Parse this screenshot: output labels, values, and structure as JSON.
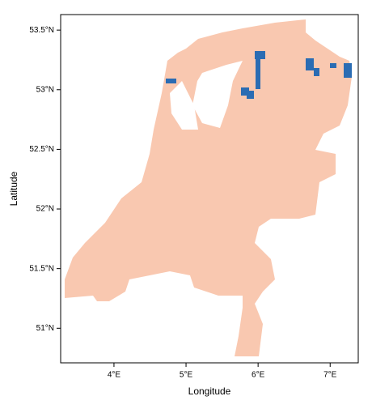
{
  "chart_data": {
    "type": "map",
    "xlabel": "Longitude",
    "ylabel": "Latitude",
    "xlim": [
      3.26,
      7.39
    ],
    "ylim": [
      50.71,
      53.63
    ],
    "xticks": [
      {
        "value": 4,
        "label": "4°E"
      },
      {
        "value": 5,
        "label": "5°E"
      },
      {
        "value": 6,
        "label": "6°E"
      },
      {
        "value": 7,
        "label": "7°E"
      }
    ],
    "yticks": [
      {
        "value": 51,
        "label": "51°N"
      },
      {
        "value": 51.5,
        "label": "51.5°N"
      },
      {
        "value": 52,
        "label": "52°N"
      },
      {
        "value": 52.5,
        "label": "52.5°N"
      },
      {
        "value": 53,
        "label": "53°N"
      },
      {
        "value": 53.5,
        "label": "53.5°N"
      }
    ]
  }
}
